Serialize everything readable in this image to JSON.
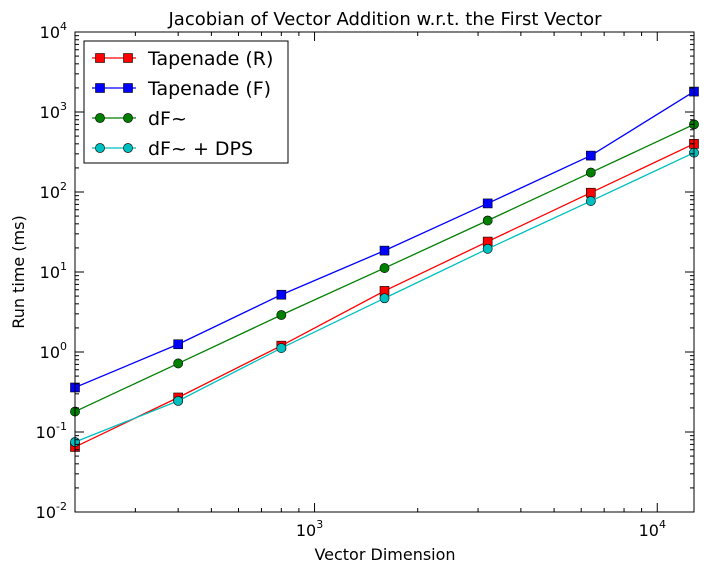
{
  "chart_data": {
    "type": "line",
    "title": "Jacobian of Vector Addition w.r.t. the First Vector",
    "xlabel": "Vector Dimension",
    "ylabel": "Run time (ms)",
    "xscale": "log",
    "yscale": "log",
    "xlim": [
      200,
      12800
    ],
    "ylim": [
      0.01,
      10000
    ],
    "grid": false,
    "legend_position": "top-left",
    "x": [
      200,
      400,
      800,
      1600,
      3200,
      6400,
      12800
    ],
    "x_ticks": [
      {
        "value": 1000,
        "base": "10",
        "exp": "3"
      },
      {
        "value": 10000,
        "base": "10",
        "exp": "4"
      }
    ],
    "y_ticks": [
      {
        "value": 0.01,
        "base": "10",
        "exp": "-2"
      },
      {
        "value": 0.1,
        "base": "10",
        "exp": "-1"
      },
      {
        "value": 1,
        "base": "10",
        "exp": "0"
      },
      {
        "value": 10,
        "base": "10",
        "exp": "1"
      },
      {
        "value": 100,
        "base": "10",
        "exp": "2"
      },
      {
        "value": 1000,
        "base": "10",
        "exp": "3"
      },
      {
        "value": 10000,
        "base": "10",
        "exp": "4"
      }
    ],
    "series": [
      {
        "name": "Tapenade (R)",
        "color": "#ff0000",
        "marker": "square",
        "values": [
          0.065,
          0.27,
          1.2,
          5.8,
          24,
          98,
          400
        ]
      },
      {
        "name": "Tapenade (F)",
        "color": "#0000ff",
        "marker": "square",
        "values": [
          0.36,
          1.25,
          5.2,
          18.5,
          72,
          285,
          1800
        ]
      },
      {
        "name": "dF~",
        "color": "#008000",
        "marker": "circle",
        "values": [
          0.18,
          0.72,
          2.9,
          11.2,
          44,
          175,
          700
        ]
      },
      {
        "name": "dF~ + DPS",
        "color": "#00bfbf",
        "marker": "circle",
        "values": [
          0.075,
          0.245,
          1.12,
          4.7,
          19.5,
          77,
          310
        ]
      }
    ]
  }
}
